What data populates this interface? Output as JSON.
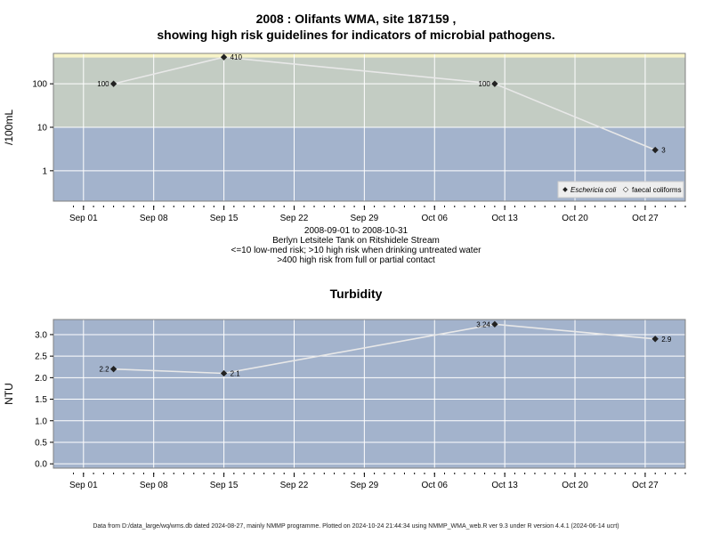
{
  "title_line1": "2008 : Olifants WMA, site 187159 ,",
  "title_line2": "showing high risk guidelines for indicators of microbial pathogens.",
  "subtitle_lines": [
    "2008-09-01 to 2008-10-31",
    "Berlyn Letsitele Tank on Ritshidele Stream",
    "<=10 low-med risk; >10 high risk when drinking untreated water",
    ">400 high risk from full or partial contact"
  ],
  "footer": "Data from D:/data_large/wq/wms.db dated 2024-08-27, mainly NMMP programme. Plotted on 2024-10-24 21:44:34 using NMMP_WMA_web.R ver 9.3 under R version 4.4.1 (2024-06-14 ucrt)",
  "colors": {
    "low_band": "#a3b3cc",
    "high_band": "#c3ccc3",
    "contact_band": "#f8f4c8",
    "line": "#e8e8e8",
    "grid": "#ffffff"
  },
  "chart_data": [
    {
      "type": "line",
      "title": "",
      "ylabel": "/100mL",
      "yscale": "log",
      "ylim": [
        0.2,
        500
      ],
      "xlim": [
        "2008-08-29",
        "2008-10-31"
      ],
      "x_tick_labels": [
        "Sep 01",
        "Sep 08",
        "Sep 15",
        "Sep 22",
        "Sep 29",
        "Oct 06",
        "Oct 13",
        "Oct 20",
        "Oct 27"
      ],
      "y_tick_labels": [
        "1",
        "10",
        "100"
      ],
      "bands": [
        {
          "from": 0.2,
          "to": 10,
          "meaning": "low-med risk"
        },
        {
          "from": 10,
          "to": 400,
          "meaning": "high risk when drinking untreated water"
        },
        {
          "from": 400,
          "to": 500,
          "meaning": "high risk from full or partial contact"
        }
      ],
      "grid": true,
      "legend_position": "bottom-right",
      "legend": [
        "Eschericia coli",
        "faecal coliforms"
      ],
      "series": [
        {
          "name": "Eschericia coli",
          "x": [
            "2008-09-04",
            "2008-09-15",
            "2008-10-12",
            "2008-10-28"
          ],
          "y": [
            100,
            410,
            100,
            3
          ],
          "labels": [
            "100",
            "410",
            "100",
            "3"
          ]
        }
      ]
    },
    {
      "type": "line",
      "title": "Turbidity",
      "ylabel": "NTU",
      "yscale": "linear",
      "ylim": [
        -0.1,
        3.35
      ],
      "xlim": [
        "2008-08-29",
        "2008-10-31"
      ],
      "x_tick_labels": [
        "Sep 01",
        "Sep 08",
        "Sep 15",
        "Sep 22",
        "Sep 29",
        "Oct 06",
        "Oct 13",
        "Oct 20",
        "Oct 27"
      ],
      "y_tick_labels": [
        "0.0",
        "0.5",
        "1.0",
        "1.5",
        "2.0",
        "2.5",
        "3.0"
      ],
      "grid": true,
      "series": [
        {
          "x": [
            "2008-09-04",
            "2008-09-15",
            "2008-10-12",
            "2008-10-28"
          ],
          "y": [
            2.2,
            2.1,
            3.24,
            2.9
          ],
          "labels": [
            "2.2",
            "2.1",
            "3.24",
            "2.9"
          ]
        }
      ]
    }
  ]
}
